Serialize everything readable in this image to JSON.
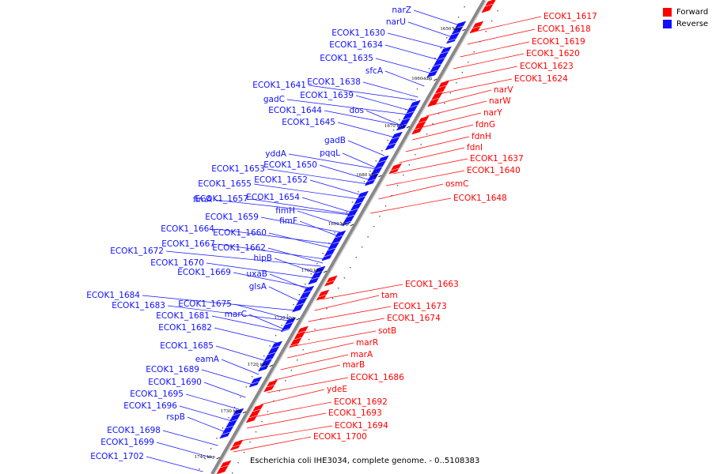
{
  "colors": {
    "forward": "#ff0000",
    "reverse": "#1010ff"
  },
  "legend": [
    {
      "label": "Forward",
      "color": "#ff0000"
    },
    {
      "label": "Reverse",
      "color": "#1010ff"
    }
  ],
  "caption": "Escherichia coli IHE3034, complete genome. - 0..5108383",
  "ticks": [
    "1650 kbp",
    "1660 kbp",
    "1670 kbp",
    "1680 kbp",
    "1690 kbp",
    "1700 kbp",
    "1710 kbp",
    "1720 kbp",
    "1730 kbp",
    "1740 kbp"
  ],
  "reverse_genes": [
    "narZ",
    "narU",
    "ECOK1_1630",
    "ECOK1_1634",
    "ECOK1_1635",
    "sfcA",
    "ECOK1_1641",
    "ECOK1_1638",
    "ECOK1_1639",
    "gadC",
    "ECOK1_1644",
    "dos",
    "ECOK1_1645",
    "gadB",
    "pqqL",
    "yddA",
    "ECOK1_1650",
    "ECOK1_1653",
    "ECOK1_1652",
    "ECOK1_1655",
    "fimA",
    "ECOK1_1657",
    "ECOK1_1654",
    "fimH",
    "ECOK1_1659",
    "fimF",
    "ECOK1_1664",
    "ECOK1_1660",
    "ECOK1_1667",
    "ECOK1_1662",
    "ECOK1_1672",
    "hipB",
    "ECOK1_1670",
    "ECOK1_1669",
    "uxaB",
    "glsA",
    "ECOK1_1684",
    "ECOK1_1683",
    "ECOK1_1675",
    "ECOK1_1681",
    "marC",
    "ECOK1_1682",
    "ECOK1_1685",
    "eamA",
    "ECOK1_1689",
    "ECOK1_1690",
    "ECOK1_1695",
    "ECOK1_1696",
    "rspB",
    "ECOK1_1698",
    "ECOK1_1699",
    "ECOK1_1702"
  ],
  "forward_genes": [
    "ECOK1_1617",
    "ECOK1_1618",
    "ECOK1_1619",
    "ECOK1_1620",
    "ECOK1_1623",
    "ECOK1_1624",
    "narV",
    "narW",
    "narY",
    "fdnG",
    "fdnH",
    "fdnI",
    "ECOK1_1637",
    "ECOK1_1640",
    "osmC",
    "ECOK1_1648",
    "ECOK1_1663",
    "tam",
    "ECOK1_1673",
    "ECOK1_1674",
    "sotB",
    "marR",
    "marA",
    "marB",
    "ECOK1_1686",
    "ydeE",
    "ECOK1_1692",
    "ECOK1_1693",
    "ECOK1_1694",
    "ECOK1_1700"
  ]
}
